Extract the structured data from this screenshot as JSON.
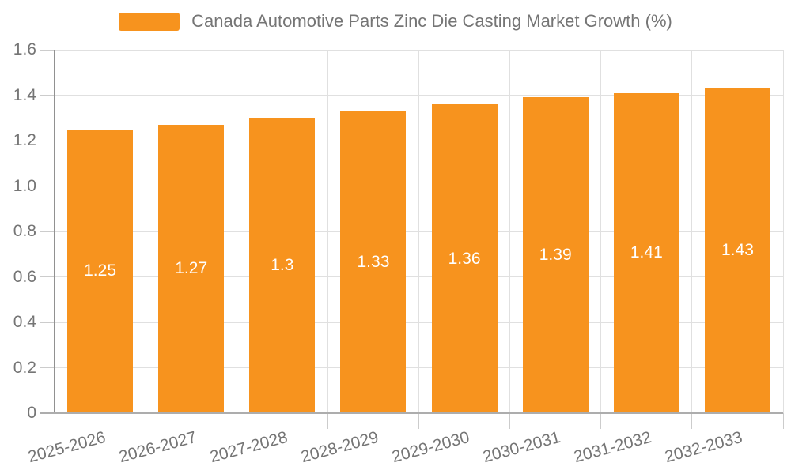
{
  "legend": {
    "series_label": "Canada Automotive Parts Zinc Die Casting Market Growth (%)"
  },
  "chart_data": {
    "type": "bar",
    "title": "Canada Automotive Parts Zinc Die Casting Market Growth (%)",
    "categories": [
      "2025-2026",
      "2026-2027",
      "2027-2028",
      "2028-2029",
      "2029-2030",
      "2030-2031",
      "2031-2032",
      "2032-2033"
    ],
    "values": [
      1.25,
      1.27,
      1.3,
      1.33,
      1.36,
      1.39,
      1.41,
      1.43
    ],
    "value_labels": [
      "1.25",
      "1.27",
      "1.3",
      "1.33",
      "1.36",
      "1.39",
      "1.41",
      "1.43"
    ],
    "xlabel": "",
    "ylabel": "",
    "ylim": [
      0,
      1.6
    ],
    "ytick_step": 0.2,
    "ytick_labels": [
      "0",
      "0.2",
      "0.4",
      "0.6",
      "0.8",
      "1.0",
      "1.2",
      "1.4",
      "1.6"
    ],
    "grid": true,
    "legend_position": "top",
    "colors": {
      "bar": "#f7931e",
      "bar_label": "#ffffff",
      "grid": "#e0e0e0",
      "tick": "#cccccc",
      "axis_y": "#919191",
      "axis_x": "#adadad",
      "text": "#757575",
      "background": "#ffffff"
    }
  }
}
